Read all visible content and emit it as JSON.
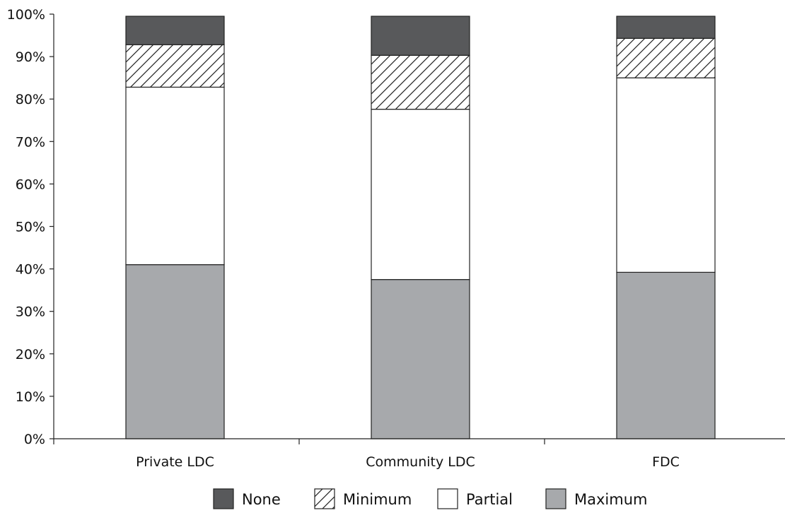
{
  "chart_data": {
    "type": "bar",
    "stacked": true,
    "normalized": true,
    "categories": [
      "Private LDC",
      "Community LDC",
      "FDC"
    ],
    "series": [
      {
        "name": "Maximum",
        "values": [
          41,
          37.5,
          39.2
        ],
        "color": "#a7a9ac",
        "pattern": "solid"
      },
      {
        "name": "Partial",
        "values": [
          41.8,
          40.1,
          45.8
        ],
        "color": "#ffffff",
        "pattern": "solid"
      },
      {
        "name": "Minimum",
        "values": [
          10,
          12.7,
          9.3
        ],
        "color": "#ffffff",
        "pattern": "diagonal-hatch"
      },
      {
        "name": "None",
        "values": [
          6.7,
          9.2,
          5.2
        ],
        "color": "#58595b",
        "pattern": "solid"
      }
    ],
    "yticks": [
      "0%",
      "10%",
      "20%",
      "30%",
      "40%",
      "50%",
      "60%",
      "70%",
      "80%",
      "90%",
      "100%"
    ],
    "ylim": [
      0,
      100
    ],
    "legend": {
      "position": "bottom",
      "order": [
        "None",
        "Minimum",
        "Partial",
        "Maximum"
      ]
    },
    "grid": false,
    "title": "",
    "xlabel": "",
    "ylabel": ""
  }
}
